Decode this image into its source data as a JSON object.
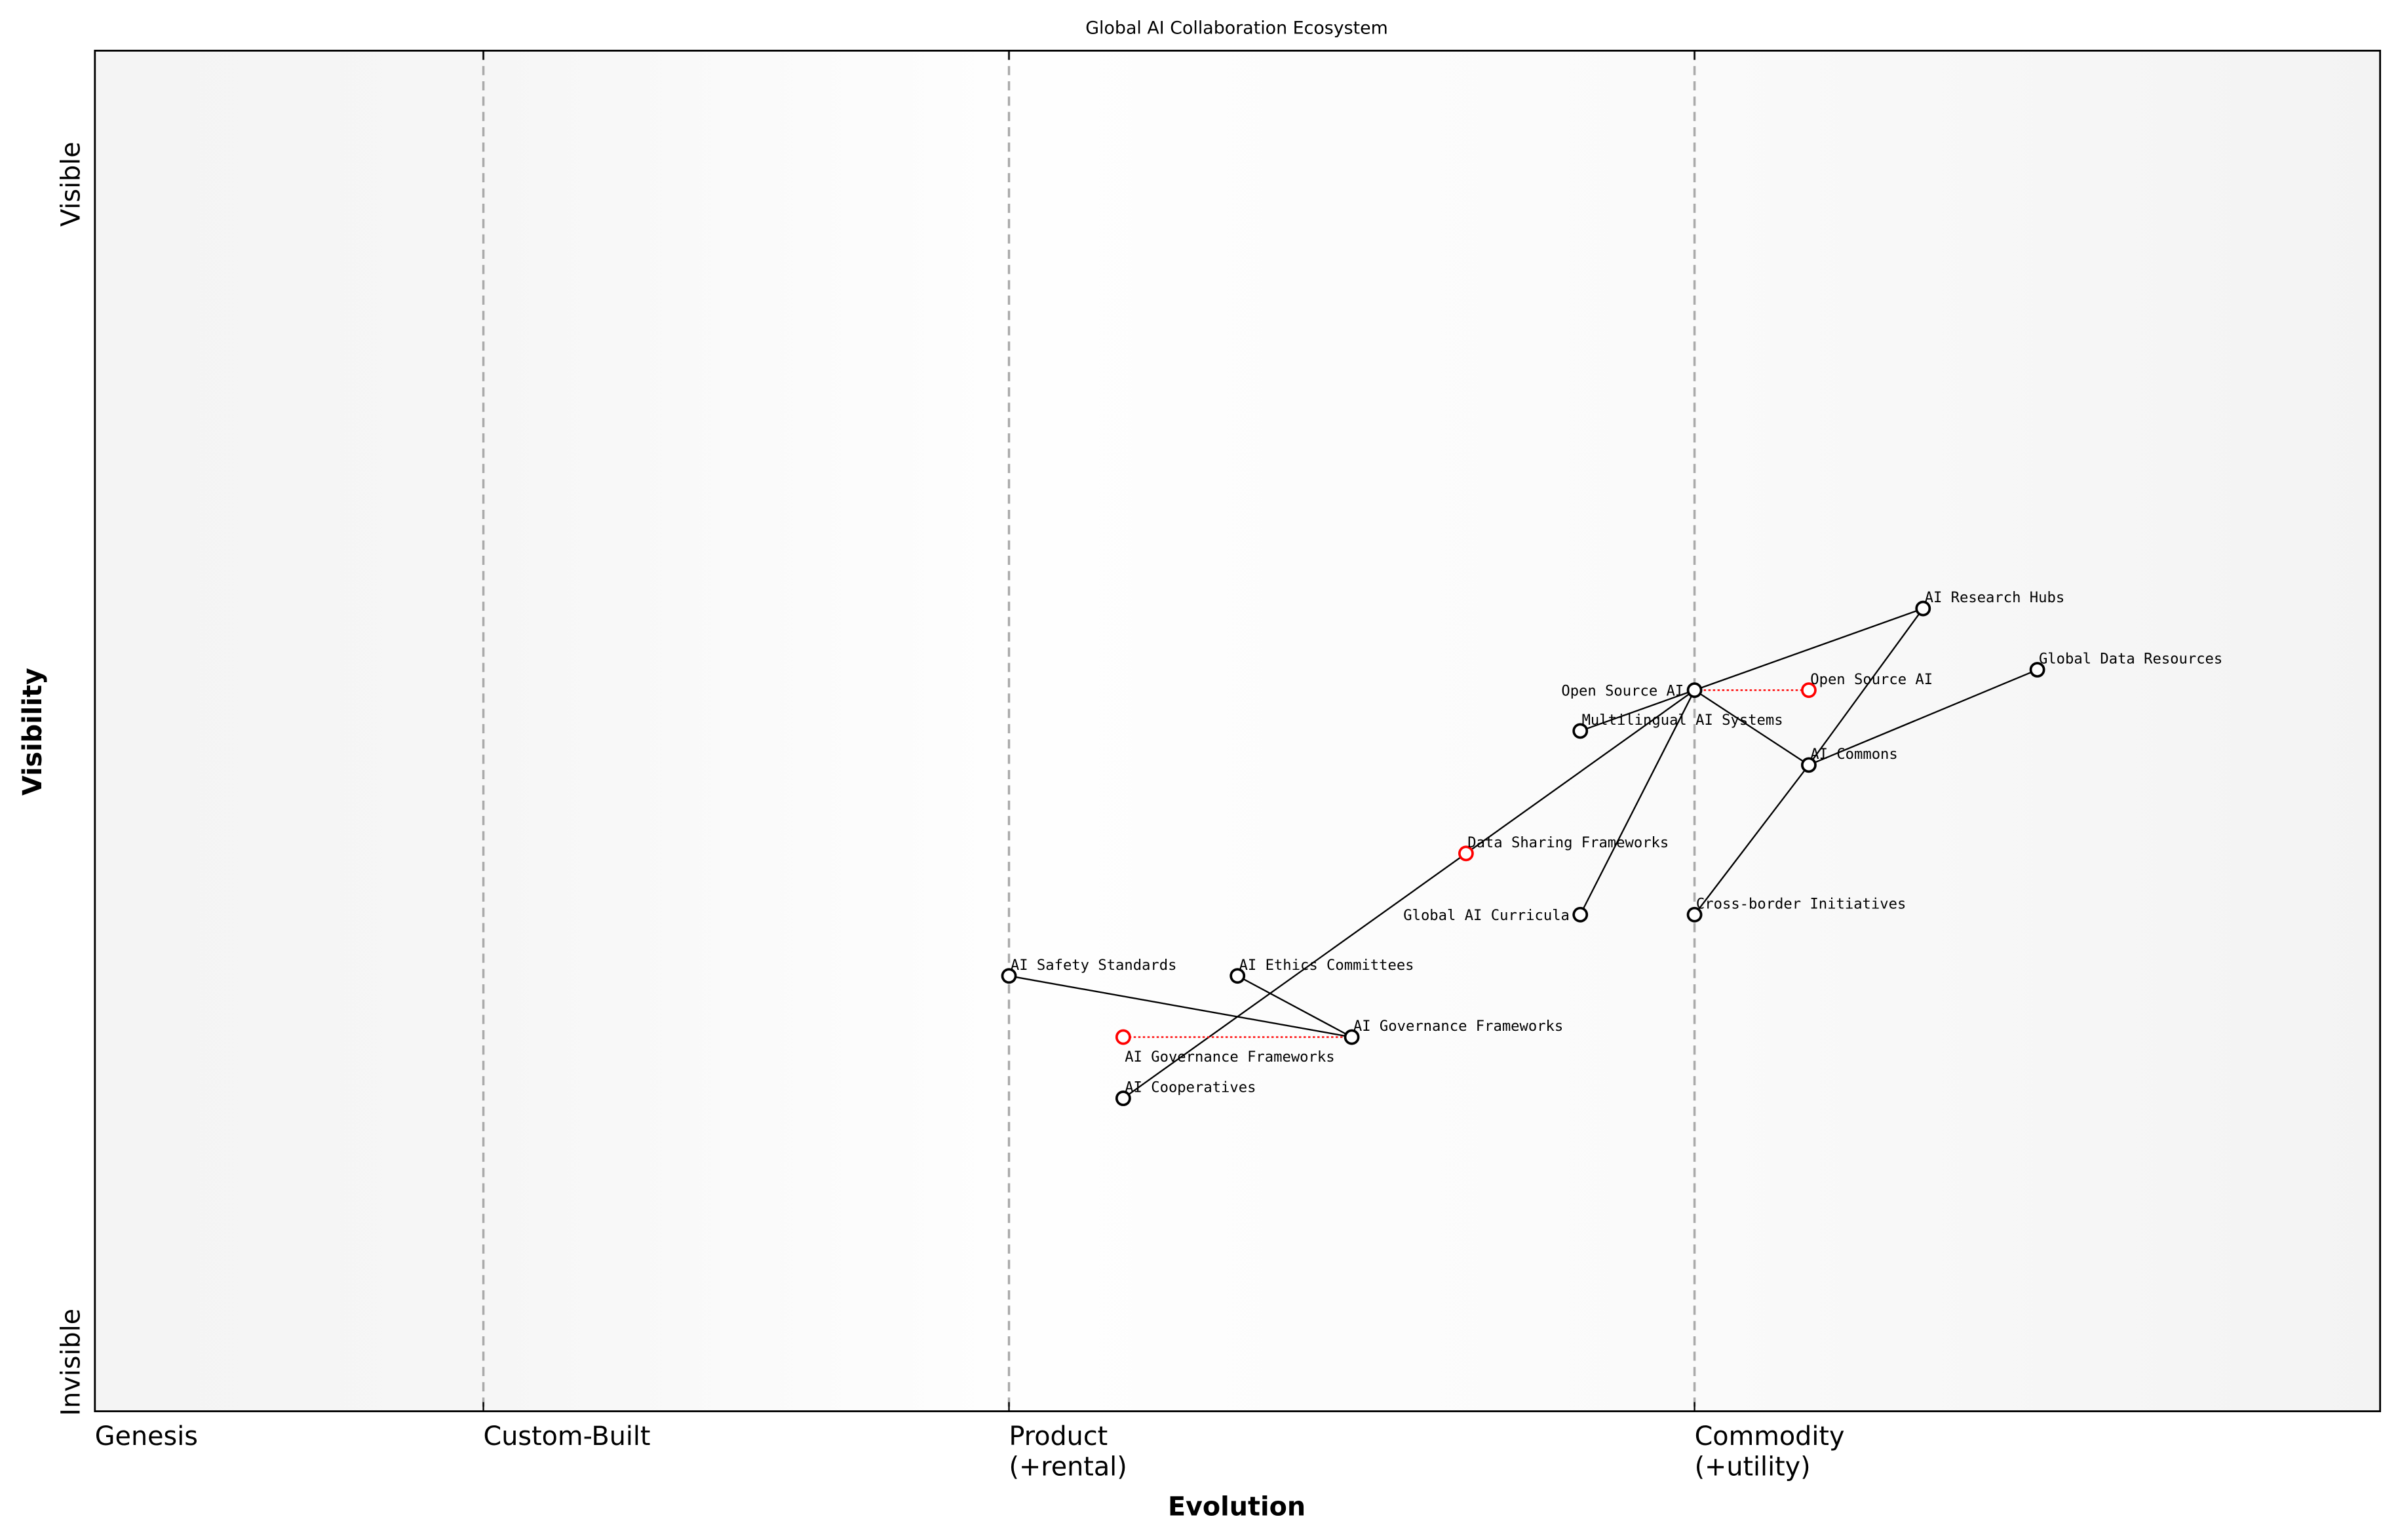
{
  "title": "Global AI Collaboration Ecosystem",
  "x_axis": {
    "label": "Evolution",
    "stages": [
      {
        "name": "Genesis",
        "sub": "",
        "at": 0.0
      },
      {
        "name": "Custom-Built",
        "sub": "",
        "at": 0.17
      },
      {
        "name": "Product",
        "sub": "(+rental)",
        "at": 0.4
      },
      {
        "name": "Commodity",
        "sub": "(+utility)",
        "at": 0.7
      }
    ]
  },
  "y_axis": {
    "label": "Visibility",
    "top": "Visible",
    "bottom": "Invisible"
  },
  "colors": {
    "component": "#000000",
    "evolved": "#ff0000",
    "stage_line": "#aaaaaa"
  },
  "components": [
    {
      "id": "hubs",
      "name": "AI Research Hubs",
      "evolution": 0.8,
      "visibility": 0.59
    },
    {
      "id": "gdr",
      "name": "Global Data Resources",
      "evolution": 0.85,
      "visibility": 0.545
    },
    {
      "id": "osai",
      "name": "Open Source AI",
      "evolution": 0.7,
      "visibility": 0.53
    },
    {
      "id": "multi",
      "name": "Multilingual AI Systems",
      "evolution": 0.65,
      "visibility": 0.5
    },
    {
      "id": "commons",
      "name": "AI Commons",
      "evolution": 0.75,
      "visibility": 0.475
    },
    {
      "id": "curr",
      "name": "Global AI Curricula",
      "evolution": 0.65,
      "visibility": 0.365
    },
    {
      "id": "cross",
      "name": "Cross-border Initiatives",
      "evolution": 0.7,
      "visibility": 0.365
    },
    {
      "id": "safety",
      "name": "AI Safety Standards",
      "evolution": 0.4,
      "visibility": 0.32
    },
    {
      "id": "ethics",
      "name": "AI Ethics Committees",
      "evolution": 0.5,
      "visibility": 0.32
    },
    {
      "id": "gov",
      "name": "AI Governance Frameworks",
      "evolution": 0.55,
      "visibility": 0.275
    },
    {
      "id": "coop",
      "name": "AI Cooperatives",
      "evolution": 0.45,
      "visibility": 0.23
    }
  ],
  "evolved": [
    {
      "from": "osai",
      "name": "Open Source AI",
      "evolution": 0.75,
      "visibility": 0.53
    },
    {
      "from": "gov",
      "name": "AI Governance Frameworks",
      "evolution": 0.45,
      "visibility": 0.275
    },
    {
      "from": "",
      "name": "Data Sharing Frameworks",
      "evolution": 0.6,
      "visibility": 0.41
    }
  ],
  "links": [
    [
      "osai",
      "hubs"
    ],
    [
      "osai",
      "multi"
    ],
    [
      "osai",
      "coop"
    ],
    [
      "osai",
      "curr"
    ],
    [
      "osai",
      "commons"
    ],
    [
      "hubs",
      "commons"
    ],
    [
      "commons",
      "cross"
    ],
    [
      "gdr",
      "commons"
    ],
    [
      "safety",
      "gov"
    ],
    [
      "ethics",
      "gov"
    ]
  ]
}
